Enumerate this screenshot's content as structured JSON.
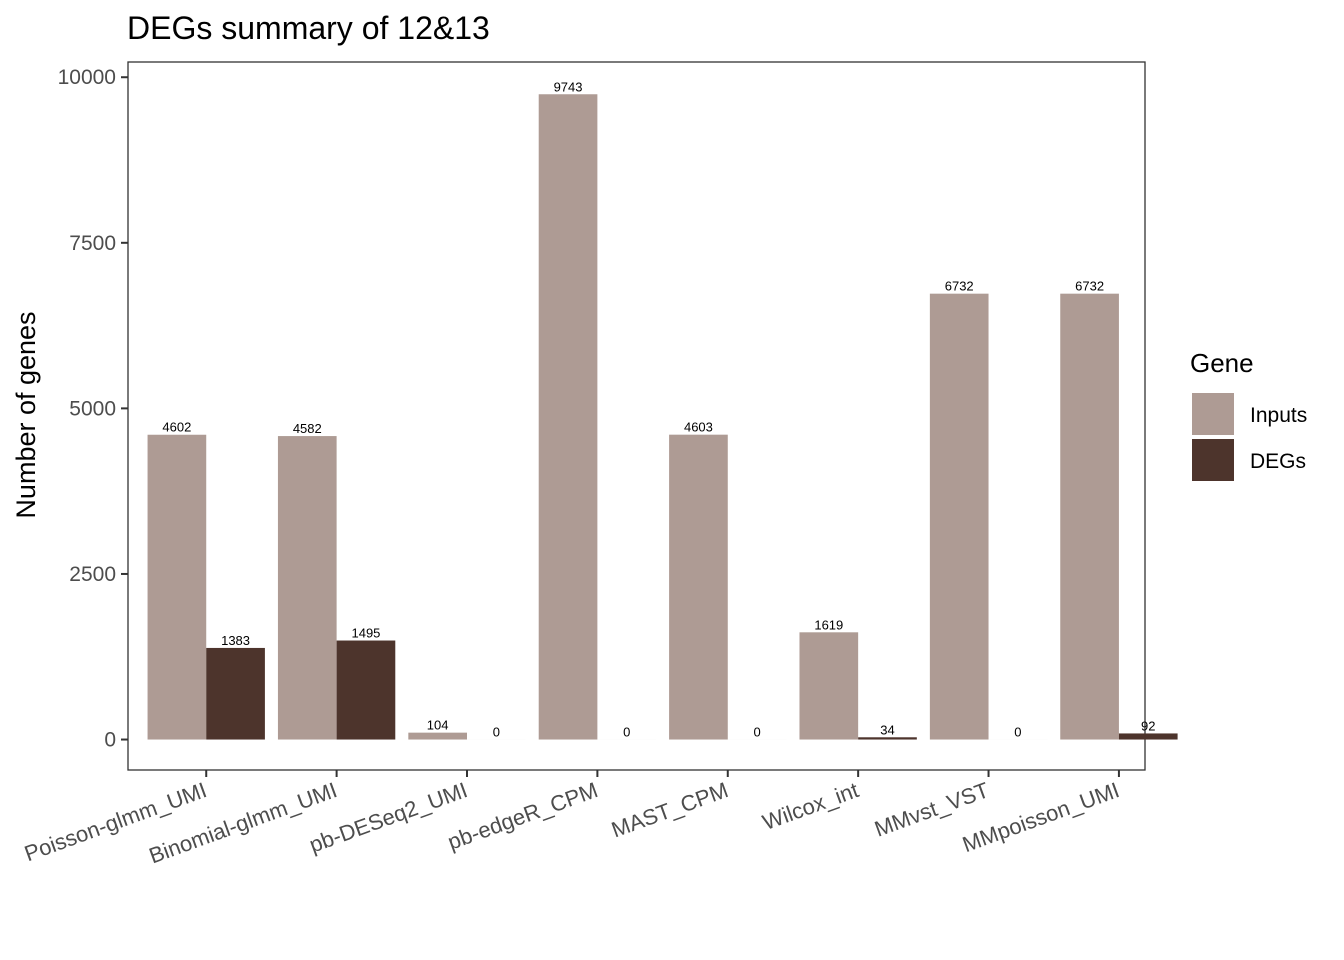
{
  "chart_data": {
    "type": "bar",
    "title": "DEGs summary of  12&13",
    "xlabel": "",
    "ylabel": "Number of genes",
    "categories": [
      "Poisson-glmm_UMI",
      "Binomial-glmm_UMI",
      "pb-DESeq2_UMI",
      "pb-edgeR_CPM",
      "MAST_CPM",
      "Wilcox_int",
      "MMvst_VST",
      "MMpoisson_UMI"
    ],
    "series": [
      {
        "name": "Inputs",
        "color": "#ae9b94",
        "values": [
          4602,
          4582,
          104,
          9743,
          4603,
          1619,
          6732,
          6732
        ]
      },
      {
        "name": "DEGs",
        "color": "#4d342c",
        "values": [
          1383,
          1495,
          0,
          0,
          0,
          34,
          0,
          92
        ]
      }
    ],
    "y_ticks": [
      0,
      2500,
      5000,
      7500,
      10000
    ],
    "y_tick_labels": [
      "0",
      "2500",
      "5000",
      "7500",
      "10000"
    ],
    "ylim": [
      -460,
      10230
    ],
    "grid": false,
    "legend": {
      "title": "Gene",
      "position": "right"
    }
  }
}
